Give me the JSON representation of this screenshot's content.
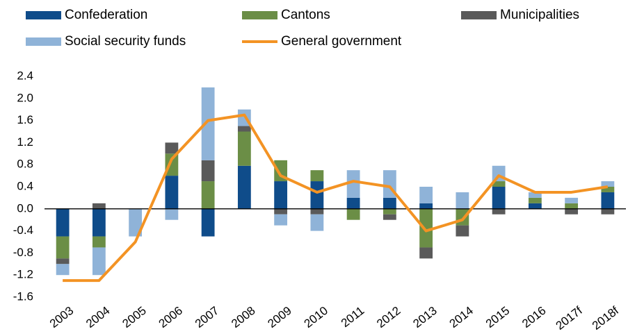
{
  "chart_data": {
    "type": "stacked-bar-line",
    "categories": [
      "2003",
      "2004",
      "2005",
      "2006",
      "2007",
      "2008",
      "2009",
      "2010",
      "2011",
      "2012",
      "2013",
      "2014",
      "2015",
      "2016",
      "2017f",
      "2018f"
    ],
    "series": [
      {
        "name": "Confederation",
        "color": "#0f4c8a",
        "values": [
          -0.5,
          -0.5,
          0,
          0.6,
          -0.5,
          0.78,
          0.5,
          0.5,
          0.2,
          0.2,
          0.1,
          0,
          0.4,
          0.1,
          0,
          0.3
        ]
      },
      {
        "name": "Cantons",
        "color": "#6b8e46",
        "values": [
          -0.4,
          -0.2,
          0,
          0.4,
          0.5,
          0.62,
          0.38,
          0.2,
          -0.2,
          -0.1,
          -0.7,
          -0.3,
          0.1,
          0.1,
          0.1,
          0.1
        ]
      },
      {
        "name": "Municipalities",
        "color": "#5a5a5a",
        "values": [
          -0.1,
          0.1,
          0,
          0.2,
          0.38,
          0.1,
          -0.1,
          -0.1,
          0,
          -0.1,
          -0.2,
          -0.2,
          -0.1,
          0,
          -0.1,
          -0.1
        ]
      },
      {
        "name": "Social security funds",
        "color": "#8fb3d8",
        "values": [
          -0.2,
          -0.5,
          -0.5,
          -0.2,
          1.32,
          0.3,
          -0.2,
          -0.3,
          0.5,
          0.5,
          0.3,
          0.3,
          0.28,
          0.1,
          0.1,
          0.1
        ]
      },
      {
        "name": "General government",
        "color": "#f39324",
        "type": "line",
        "values": [
          -1.3,
          -1.3,
          -0.6,
          0.9,
          1.6,
          1.7,
          0.6,
          0.3,
          0.5,
          0.4,
          -0.4,
          -0.2,
          0.6,
          0.3,
          0.3,
          0.4
        ]
      }
    ],
    "ylim": [
      -1.6,
      2.4
    ],
    "yticks": [
      -1.6,
      -1.2,
      -0.8,
      -0.4,
      {
        "value": 0,
        "label": "0.0"
      },
      0.4,
      0.8,
      1.2,
      1.6,
      {
        "value": 2,
        "label": "2.0"
      },
      2.4
    ],
    "grid": false
  }
}
